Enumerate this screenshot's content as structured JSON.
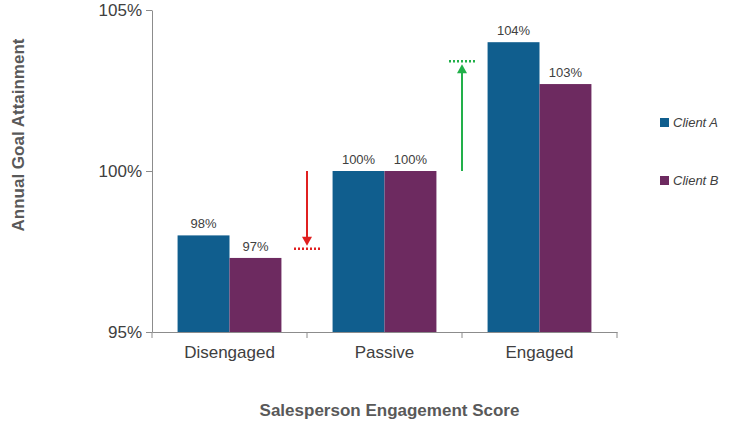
{
  "chart_data": {
    "type": "bar",
    "x_label": "Salesperson Engagement Score",
    "y_label": "Annual Goal Attainment",
    "categories": [
      "Disengaged",
      "Passive",
      "Engaged"
    ],
    "series": [
      {
        "name": "Client A",
        "color": "#105e8e",
        "values": [
          98,
          100,
          104
        ],
        "value_labels": [
          "98%",
          "100%",
          "104%"
        ]
      },
      {
        "name": "Client B",
        "color": "#6d2a60",
        "values": [
          97.3,
          100,
          102.7
        ],
        "value_labels": [
          "97%",
          "100%",
          "103%"
        ]
      }
    ],
    "ylim": [
      95,
      105
    ],
    "yticks": [
      {
        "value": 95,
        "label": "95%"
      },
      {
        "value": 100,
        "label": "100%"
      },
      {
        "value": 105,
        "label": "105%"
      }
    ],
    "grid": false,
    "legend": "right",
    "data_labels": true
  }
}
